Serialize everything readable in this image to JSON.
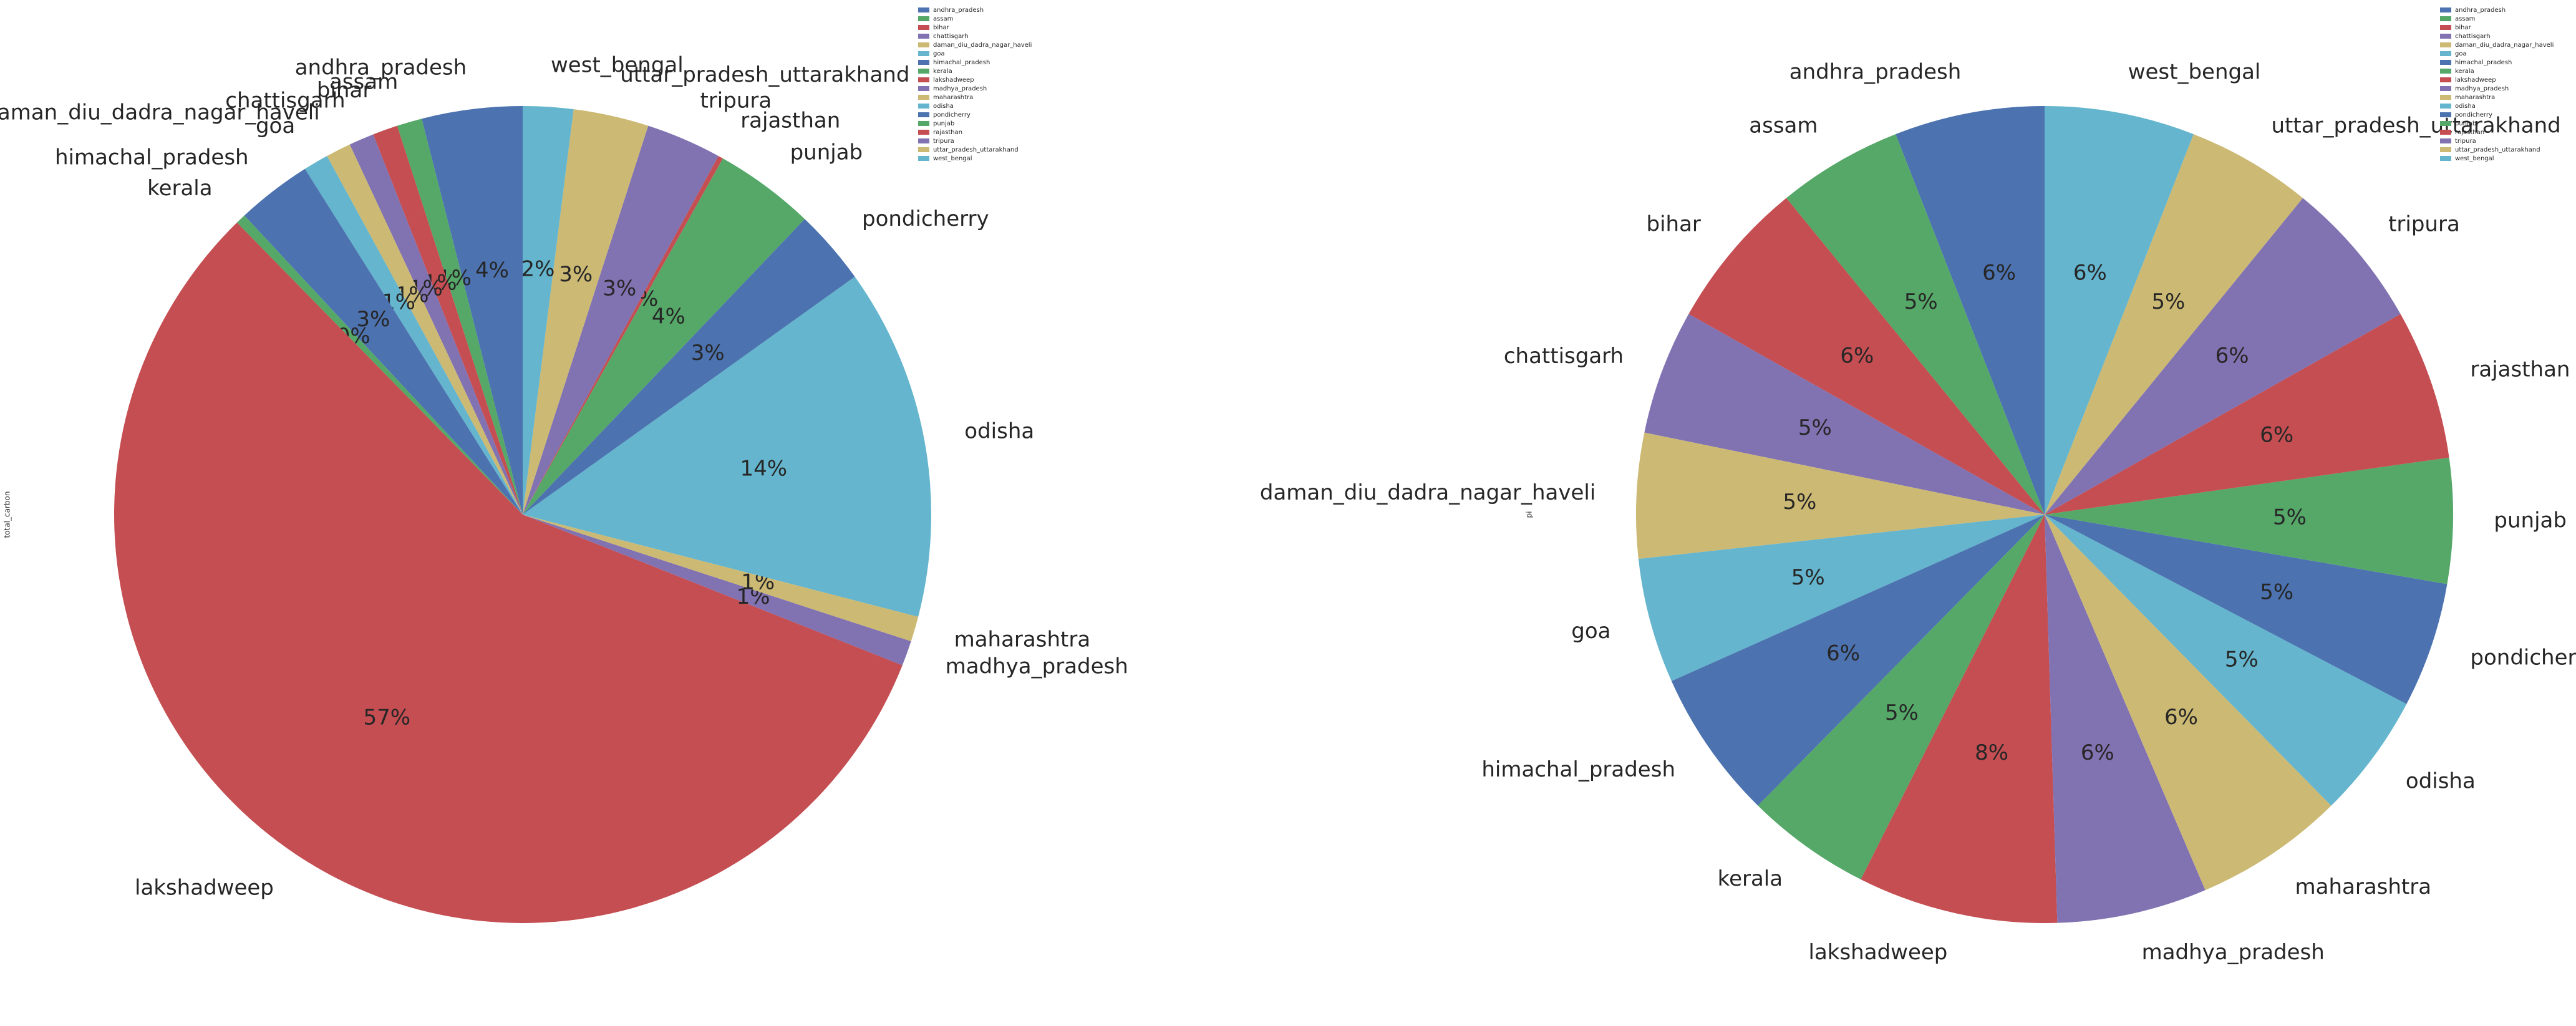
{
  "chart_data": [
    {
      "type": "pie",
      "ylabel": "total_carbon",
      "startangle_deg": 90,
      "counterclockwise": true,
      "legend": "top-right",
      "percent_format": "integer",
      "categories": [
        "andhra_pradesh",
        "assam",
        "bihar",
        "chattisgarh",
        "daman_diu_dadra_nagar_haveli",
        "goa",
        "himachal_pradesh",
        "kerala",
        "lakshadweep",
        "madhya_pradesh",
        "maharashtra",
        "odisha",
        "pondicherry",
        "punjab",
        "rajasthan",
        "tripura",
        "uttar_pradesh_uttarakhand",
        "west_bengal"
      ],
      "values": [
        4,
        1,
        1,
        1,
        1,
        1,
        3,
        0.4,
        57,
        1,
        1,
        14,
        3,
        4,
        0.2,
        3,
        3,
        2
      ]
    },
    {
      "type": "pie",
      "ylabel": "pi",
      "startangle_deg": 90,
      "counterclockwise": true,
      "legend": "top-right",
      "percent_format": "integer",
      "categories": [
        "andhra_pradesh",
        "assam",
        "bihar",
        "chattisgarh",
        "daman_diu_dadra_nagar_haveli",
        "goa",
        "himachal_pradesh",
        "kerala",
        "lakshadweep",
        "madhya_pradesh",
        "maharashtra",
        "odisha",
        "pondicherry",
        "punjab",
        "rajasthan",
        "tripura",
        "uttar_pradesh_uttarakhand",
        "west_bengal"
      ],
      "values": [
        6,
        5,
        6,
        5,
        5,
        5,
        6,
        5,
        8,
        6,
        6,
        5,
        5,
        5,
        6,
        6,
        5,
        6
      ]
    }
  ],
  "colors": [
    "#4c72b0",
    "#55a868",
    "#c44e52",
    "#8172b2",
    "#ccb974",
    "#64b5cd"
  ]
}
